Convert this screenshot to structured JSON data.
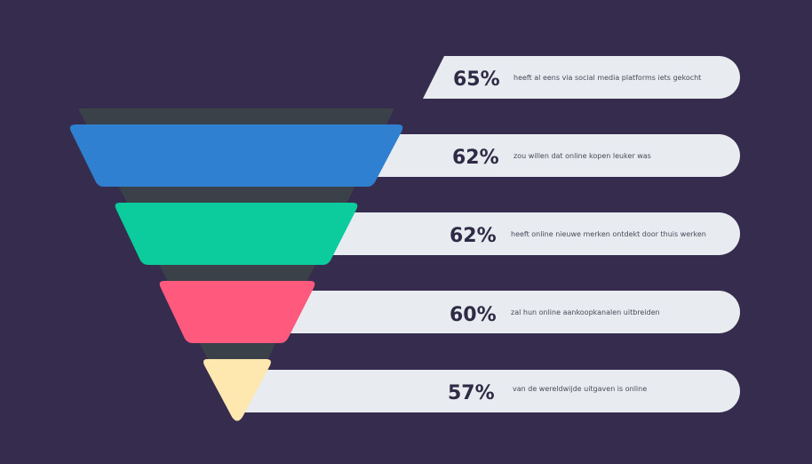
{
  "chart_data": {
    "type": "funnel",
    "unit": "%",
    "stages": [
      {
        "value": 65,
        "label": "65%",
        "text": "heeft al eens via social media platforms iets gekocht",
        "color": ""
      },
      {
        "value": 62,
        "label": "62%",
        "text": "zou willen dat online kopen leuker was",
        "color": "#2f80d0"
      },
      {
        "value": 62,
        "label": "62%",
        "text": "heeft online nieuwe merken ontdekt door thuis werken",
        "color": "#0ccb9c"
      },
      {
        "value": 60,
        "label": "60%",
        "text": "zal hun online aankoopkanalen uitbreiden",
        "color": "#ff5a7e"
      },
      {
        "value": 57,
        "label": "57%",
        "text": "van de wereldwijde uitgaven is online",
        "color": "#ffe7b0"
      }
    ]
  },
  "colors": {
    "background": "#352c4e",
    "funnel_shadow": "#3a4149",
    "bar_fill": "#e8ebef",
    "text_dark": "#2f2a45"
  }
}
